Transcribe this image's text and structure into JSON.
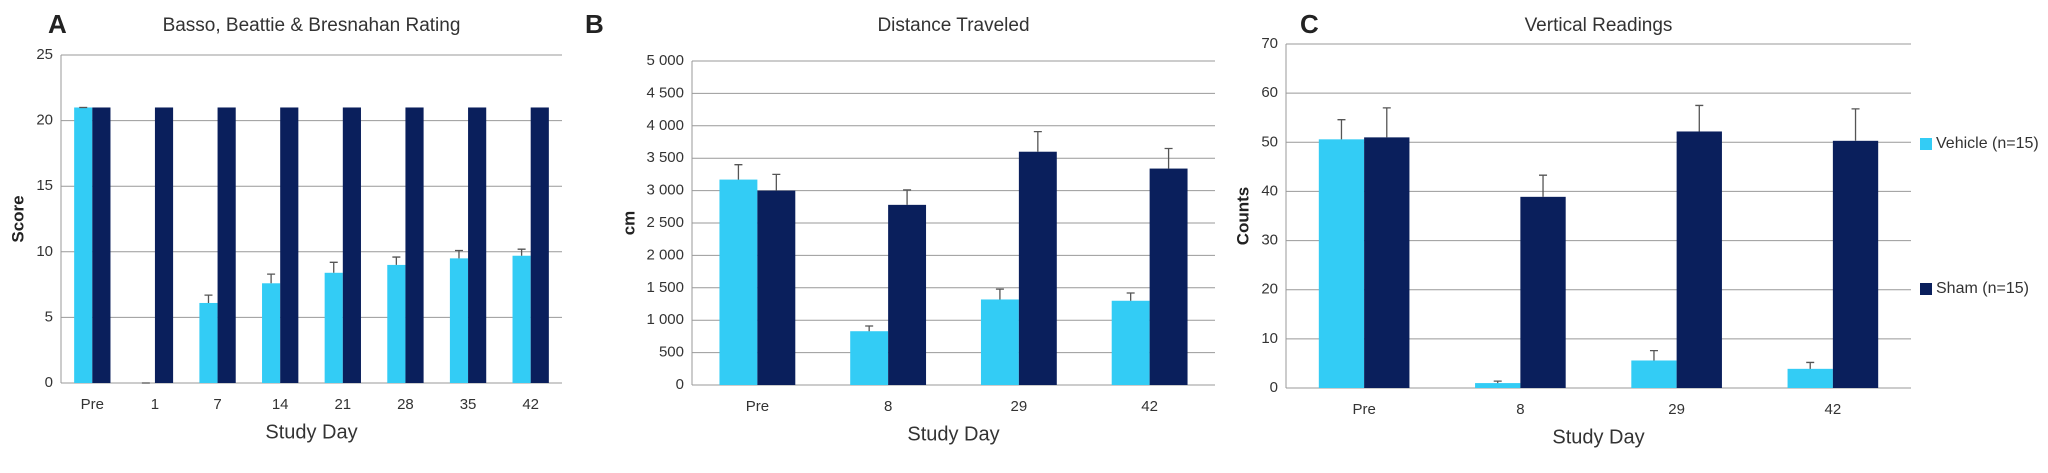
{
  "chart_data": [
    {
      "type": "bar",
      "panel_label": "A",
      "title": "Basso, Beattie & Bresnahan Rating",
      "x_label": "Study Day",
      "y_label": "Score",
      "categories": [
        "Pre",
        "1",
        "7",
        "14",
        "21",
        "28",
        "35",
        "42"
      ],
      "series": [
        {
          "color": "#33ccf5",
          "values": [
            21,
            0,
            6.1,
            7.6,
            8.4,
            9.0,
            9.5,
            9.7
          ],
          "errors": [
            0,
            0,
            0.6,
            0.7,
            0.8,
            0.6,
            0.6,
            0.5
          ]
        },
        {
          "color": "#0a1f5c",
          "values": [
            21,
            21,
            21,
            21,
            21,
            21,
            21,
            21
          ]
        }
      ],
      "ylim": [
        0,
        25
      ],
      "yticks": [
        0,
        5,
        10,
        15,
        20,
        25
      ],
      "grid": true
    },
    {
      "type": "bar",
      "panel_label": "B",
      "title": "Distance Traveled",
      "x_label": "Study Day",
      "y_label": "cm",
      "categories": [
        "Pre",
        "8",
        "29",
        "42"
      ],
      "series": [
        {
          "color": "#33ccf5",
          "values": [
            3170,
            830,
            1320,
            1300
          ],
          "errors": [
            230,
            80,
            160,
            120
          ]
        },
        {
          "color": "#0a1f5c",
          "values": [
            3000,
            2780,
            3600,
            3340
          ],
          "errors": [
            250,
            230,
            310,
            310
          ]
        }
      ],
      "ylim": [
        0,
        5000
      ],
      "yticks": [
        0,
        500,
        {
          "value": 1000,
          "label": "1 000"
        },
        {
          "value": 1500,
          "label": "1 500"
        },
        {
          "value": 2000,
          "label": "2 000"
        },
        {
          "value": 2500,
          "label": "2 500"
        },
        {
          "value": 3000,
          "label": "3 000"
        },
        {
          "value": 3500,
          "label": "3 500"
        },
        {
          "value": 4000,
          "label": "4 000"
        },
        {
          "value": 4500,
          "label": "4 500"
        },
        {
          "value": 5000,
          "label": "5 000"
        }
      ],
      "grid": true
    },
    {
      "type": "bar",
      "panel_label": "C",
      "title": "Vertical Readings",
      "x_label": "Study Day",
      "y_label": "Counts",
      "categories": [
        "Pre",
        "8",
        "29",
        "42"
      ],
      "series": [
        {
          "name": "Vehicle (n=15)",
          "color": "#33ccf5",
          "values": [
            50.6,
            1.0,
            5.6,
            3.9
          ],
          "errors": [
            4.0,
            0.4,
            2.0,
            1.3
          ]
        },
        {
          "name": "Sham (n=15)",
          "color": "#0a1f5c",
          "values": [
            51.0,
            38.9,
            52.2,
            50.3
          ],
          "errors": [
            6.0,
            4.4,
            5.3,
            6.5
          ]
        }
      ],
      "ylim": [
        0,
        70
      ],
      "yticks": [
        0,
        10,
        20,
        30,
        40,
        50,
        60,
        70
      ],
      "grid": true,
      "legend": "right"
    }
  ]
}
